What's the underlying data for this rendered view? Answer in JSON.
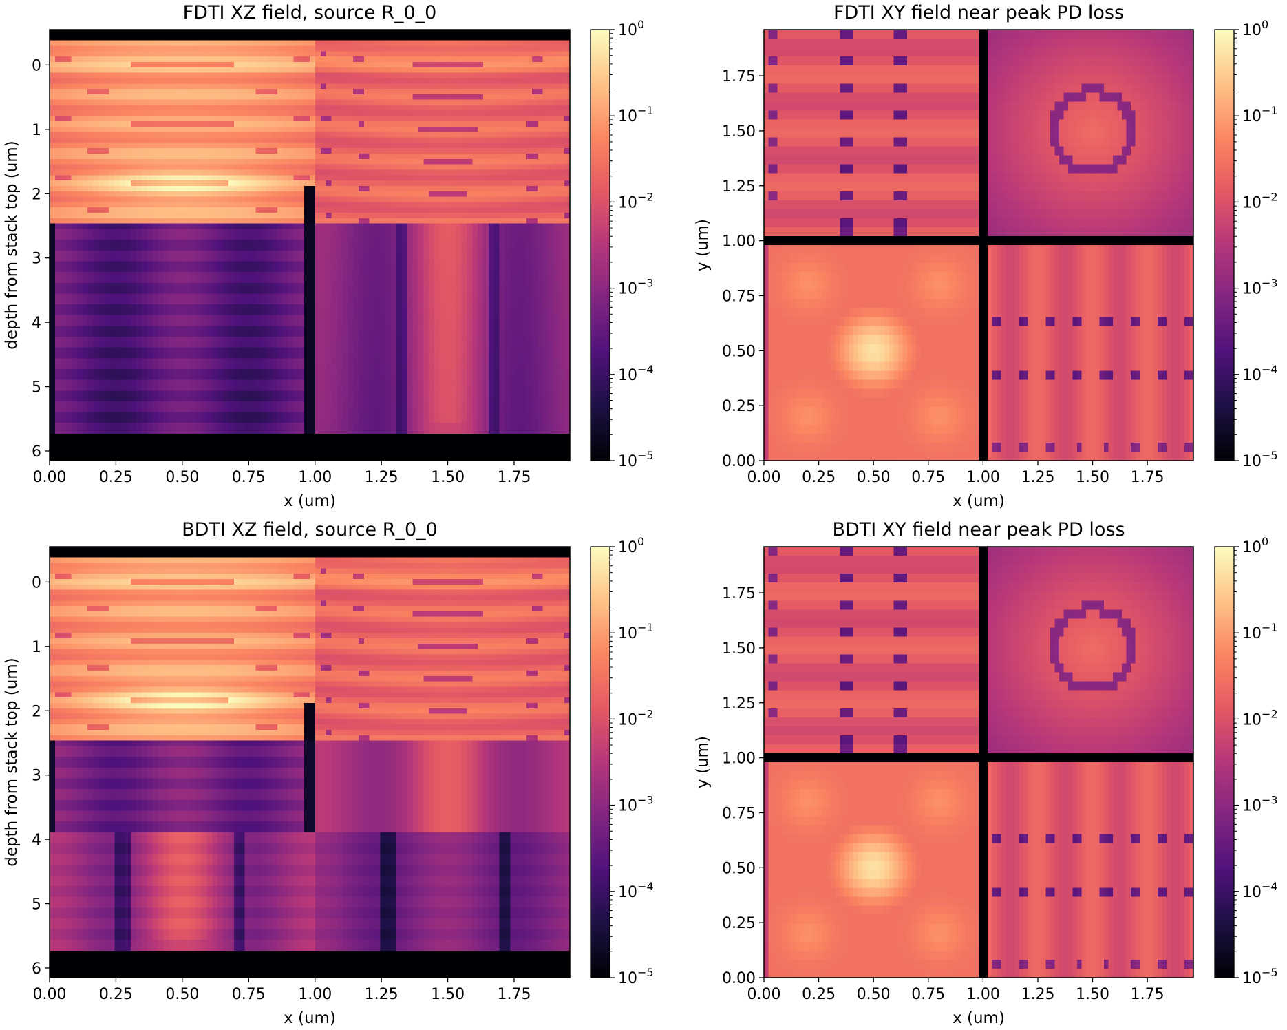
{
  "figure": {
    "colormap": "magma",
    "colors": {
      "magma_stops": [
        "#000004",
        "#1c1044",
        "#4f127b",
        "#812581",
        "#b5367a",
        "#e55964",
        "#fb8761",
        "#fec287",
        "#fcfdbf"
      ]
    }
  },
  "chart_data": [
    {
      "id": "fdti-xz",
      "type": "heatmap",
      "title": "FDTI XZ field, source R_0_0",
      "xlabel": "x (um)",
      "ylabel": "depth from stack top (um)",
      "xlim": [
        0.0,
        1.96
      ],
      "ylim": [
        6.15,
        -0.55
      ],
      "xticks": [
        0.0,
        0.25,
        0.5,
        0.75,
        1.0,
        1.25,
        1.5,
        1.75
      ],
      "xtick_labels": [
        "0.00",
        "0.25",
        "0.50",
        "0.75",
        "1.00",
        "1.25",
        "1.50",
        "1.75"
      ],
      "yticks": [
        0,
        1,
        2,
        3,
        4,
        5,
        6
      ],
      "ytick_labels": [
        "0",
        "1",
        "2",
        "3",
        "4",
        "5",
        "6"
      ],
      "color_scale": "log",
      "colorbar": {
        "min": 1e-05,
        "max": 1,
        "tick_values": [
          1e-05,
          0.0001,
          0.001,
          0.01,
          0.1,
          1
        ],
        "tick_labels": [
          [
            "10",
            "−5"
          ],
          [
            "10",
            "−4"
          ],
          [
            "10",
            "−3"
          ],
          [
            "10",
            "−2"
          ],
          [
            "10",
            "−1"
          ],
          [
            "10",
            "0"
          ]
        ]
      },
      "features": {
        "upper_stack_log_peak": -0.3,
        "hot_spot_depth_um": 1.85,
        "trench_x_um": 1.0,
        "lower_left_mean_log": -3.6,
        "lower_right_column_log": -2.5
      }
    },
    {
      "id": "fdti-xy",
      "type": "heatmap",
      "title": "FDTI XY field near peak PD loss",
      "xlabel": "x (um)",
      "ylabel": "y (um)",
      "xlim": [
        0.0,
        1.96
      ],
      "ylim": [
        0.0,
        1.96
      ],
      "xticks": [
        0.0,
        0.25,
        0.5,
        0.75,
        1.0,
        1.25,
        1.5,
        1.75
      ],
      "xtick_labels": [
        "0.00",
        "0.25",
        "0.50",
        "0.75",
        "1.00",
        "1.25",
        "1.50",
        "1.75"
      ],
      "yticks": [
        0.0,
        0.25,
        0.5,
        0.75,
        1.0,
        1.25,
        1.5,
        1.75
      ],
      "ytick_labels": [
        "0.00",
        "0.25",
        "0.50",
        "0.75",
        "1.00",
        "1.25",
        "1.50",
        "1.75"
      ],
      "color_scale": "log",
      "colorbar": {
        "min": 1e-05,
        "max": 1,
        "tick_values": [
          1e-05,
          0.0001,
          0.001,
          0.01,
          0.1,
          1
        ],
        "tick_labels": [
          [
            "10",
            "−5"
          ],
          [
            "10",
            "−4"
          ],
          [
            "10",
            "−3"
          ],
          [
            "10",
            "−2"
          ],
          [
            "10",
            "−1"
          ],
          [
            "10",
            "0"
          ]
        ]
      },
      "features": {
        "peak_center_um": [
          0.5,
          0.5
        ],
        "peak_log": -0.45,
        "ring_center_um": [
          1.5,
          1.5
        ],
        "ring_radius_um": 0.18,
        "trench_lines_um": 1.0
      }
    },
    {
      "id": "bdti-xz",
      "type": "heatmap",
      "title": "BDTI XZ field, source R_0_0",
      "xlabel": "x (um)",
      "ylabel": "depth from stack top (um)",
      "xlim": [
        0.0,
        1.96
      ],
      "ylim": [
        6.15,
        -0.55
      ],
      "xticks": [
        0.0,
        0.25,
        0.5,
        0.75,
        1.0,
        1.25,
        1.5,
        1.75
      ],
      "xtick_labels": [
        "0.00",
        "0.25",
        "0.50",
        "0.75",
        "1.00",
        "1.25",
        "1.50",
        "1.75"
      ],
      "yticks": [
        0,
        1,
        2,
        3,
        4,
        5,
        6
      ],
      "ytick_labels": [
        "0",
        "1",
        "2",
        "3",
        "4",
        "5",
        "6"
      ],
      "color_scale": "log",
      "colorbar": {
        "min": 1e-05,
        "max": 1,
        "tick_values": [
          1e-05,
          0.0001,
          0.001,
          0.01,
          0.1,
          1
        ],
        "tick_labels": [
          [
            "10",
            "−5"
          ],
          [
            "10",
            "−4"
          ],
          [
            "10",
            "−3"
          ],
          [
            "10",
            "−2"
          ],
          [
            "10",
            "−1"
          ],
          [
            "10",
            "0"
          ]
        ]
      },
      "features": {
        "upper_stack_log_peak": -0.3,
        "hot_spot_depth_um": 1.85,
        "trench_x_um": 1.0,
        "trench_depth_um": 2.55,
        "lower_left_column_log": -2.8,
        "lower_right_mean_log": -3.0
      }
    },
    {
      "id": "bdti-xy",
      "type": "heatmap",
      "title": "BDTI XY field near peak PD loss",
      "xlabel": "x (um)",
      "ylabel": "y (um)",
      "xlim": [
        0.0,
        1.96
      ],
      "ylim": [
        0.0,
        1.96
      ],
      "xticks": [
        0.0,
        0.25,
        0.5,
        0.75,
        1.0,
        1.25,
        1.5,
        1.75
      ],
      "xtick_labels": [
        "0.00",
        "0.25",
        "0.50",
        "0.75",
        "1.00",
        "1.25",
        "1.50",
        "1.75"
      ],
      "yticks": [
        0.0,
        0.25,
        0.5,
        0.75,
        1.0,
        1.25,
        1.5,
        1.75
      ],
      "ytick_labels": [
        "0.00",
        "0.25",
        "0.50",
        "0.75",
        "1.00",
        "1.25",
        "1.50",
        "1.75"
      ],
      "color_scale": "log",
      "colorbar": {
        "min": 1e-05,
        "max": 1,
        "tick_values": [
          1e-05,
          0.0001,
          0.001,
          0.01,
          0.1,
          1
        ],
        "tick_labels": [
          [
            "10",
            "−5"
          ],
          [
            "10",
            "−4"
          ],
          [
            "10",
            "−3"
          ],
          [
            "10",
            "−2"
          ],
          [
            "10",
            "−1"
          ],
          [
            "10",
            "0"
          ]
        ]
      },
      "features": {
        "peak_center_um": [
          0.5,
          0.5
        ],
        "peak_log": -0.5,
        "ring_center_um": [
          1.5,
          1.5
        ],
        "ring_radius_um": 0.18,
        "trench_lines_um": 1.0
      }
    }
  ]
}
